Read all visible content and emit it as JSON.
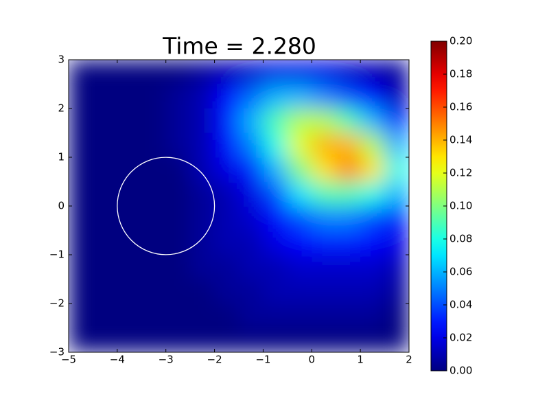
{
  "chart_data": {
    "type": "heatmap",
    "title": "Time = 2.280",
    "x": [
      -4.75,
      -4.25,
      -3.75,
      -3.25,
      -2.75,
      -2.25,
      -1.75,
      -1.25,
      -0.75,
      -0.25,
      0.25,
      0.75,
      1.25,
      1.75
    ],
    "y": [
      2.75,
      2.25,
      1.75,
      1.25,
      0.75,
      0.25,
      -0.25,
      -0.75,
      -1.25,
      -1.75,
      -2.25,
      -2.75
    ],
    "z": [
      [
        0,
        0,
        0,
        0,
        0,
        0.005,
        0.01,
        0.015,
        0.02,
        0.02,
        0.02,
        0.015,
        0.01,
        0.005
      ],
      [
        0,
        0,
        0,
        0,
        0.005,
        0.01,
        0.025,
        0.045,
        0.06,
        0.06,
        0.05,
        0.04,
        0.025,
        0.01
      ],
      [
        0,
        0,
        0,
        0,
        0.005,
        0.01,
        0.03,
        0.06,
        0.09,
        0.11,
        0.11,
        0.09,
        0.06,
        0.03
      ],
      [
        0,
        0,
        0,
        0,
        0.005,
        0.01,
        0.025,
        0.05,
        0.08,
        0.12,
        0.14,
        0.14,
        0.11,
        0.06
      ],
      [
        0,
        0,
        0,
        0,
        0,
        0.01,
        0.02,
        0.03,
        0.06,
        0.1,
        0.13,
        0.15,
        0.13,
        0.08
      ],
      [
        0,
        0,
        0,
        0,
        0,
        0.005,
        0.01,
        0.02,
        0.04,
        0.07,
        0.09,
        0.09,
        0.08,
        0.06
      ],
      [
        0,
        0,
        0,
        0,
        0,
        0.005,
        0.01,
        0.015,
        0.025,
        0.04,
        0.05,
        0.05,
        0.04,
        0.03
      ],
      [
        0,
        0,
        0,
        0,
        0,
        0.005,
        0.01,
        0.01,
        0.02,
        0.025,
        0.03,
        0.03,
        0.025,
        0.02
      ],
      [
        0,
        0,
        0,
        0,
        0,
        0.005,
        0.005,
        0.01,
        0.01,
        0.015,
        0.015,
        0.015,
        0.015,
        0.01
      ],
      [
        0,
        0,
        0,
        0,
        0,
        0,
        0.005,
        0.005,
        0.01,
        0.01,
        0.01,
        0.01,
        0.01,
        0.005
      ],
      [
        0,
        0,
        0,
        0,
        0,
        0,
        0,
        0.005,
        0.005,
        0.005,
        0.005,
        0.005,
        0.005,
        0
      ],
      [
        0,
        0,
        0,
        0,
        0,
        0,
        0,
        0,
        0,
        0,
        0,
        0,
        0,
        0
      ]
    ],
    "xlim": [
      -5,
      2
    ],
    "xticks": [
      {
        "value": -5,
        "label": "−5"
      },
      {
        "value": -4,
        "label": "−4"
      },
      {
        "value": -3,
        "label": "−3"
      },
      {
        "value": -2,
        "label": "−2"
      },
      {
        "value": -1,
        "label": "−1"
      },
      0,
      1,
      2
    ],
    "ylim": [
      -3,
      3
    ],
    "yticks": [
      {
        "value": -3,
        "label": "−3"
      },
      {
        "value": -2,
        "label": "−2"
      },
      {
        "value": -1,
        "label": "−1"
      },
      0,
      1,
      2,
      3
    ],
    "colormap": "jet",
    "clim": [
      0,
      0.2
    ],
    "cticks": [
      {
        "value": 0,
        "label": "0.00"
      },
      {
        "value": 0.02,
        "label": "0.02"
      },
      {
        "value": 0.04,
        "label": "0.04"
      },
      {
        "value": 0.06,
        "label": "0.06"
      },
      {
        "value": 0.08,
        "label": "0.08"
      },
      {
        "value": 0.1,
        "label": "0.10"
      },
      {
        "value": 0.12,
        "label": "0.12"
      },
      {
        "value": 0.14,
        "label": "0.14"
      },
      {
        "value": 0.16,
        "label": "0.16"
      },
      {
        "value": 0.18,
        "label": "0.18"
      },
      {
        "value": 0.2,
        "label": "0.20"
      }
    ],
    "circle": {
      "center": [
        -3,
        0
      ],
      "radius": 1,
      "color": "#ffffff"
    }
  }
}
